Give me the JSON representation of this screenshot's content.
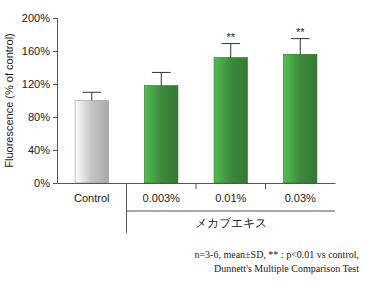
{
  "chart_data": {
    "type": "bar",
    "y_label": "Fluorescence (% of control)",
    "categories": [
      "Control",
      "0.003%",
      "0.01%",
      "0.03%"
    ],
    "values": [
      100,
      118,
      152,
      156
    ],
    "errors": [
      10,
      16,
      17,
      19
    ],
    "colors": [
      "#c4c4c4",
      "#3c8a3c",
      "#3c8a3c",
      "#3c8a3c"
    ],
    "significance": [
      null,
      null,
      "**",
      "**"
    ],
    "groups": [
      {
        "label": "メカブエキス",
        "categories": [
          "0.003%",
          "0.01%",
          "0.03%"
        ]
      }
    ],
    "notes": [
      "n=3-6, mean±SD, ** : p<0.01 vs control,",
      "Dunnett's Multiple Comparison Test"
    ],
    "ylim": [
      0,
      200
    ],
    "yticks": [
      {
        "value": 0,
        "label": "0%"
      },
      {
        "value": 40,
        "label": "40%"
      },
      {
        "value": 80,
        "label": "80%"
      },
      {
        "value": 120,
        "label": "120%"
      },
      {
        "value": 160,
        "label": "160%"
      },
      {
        "value": 200,
        "label": "200%"
      }
    ],
    "grid": false
  }
}
